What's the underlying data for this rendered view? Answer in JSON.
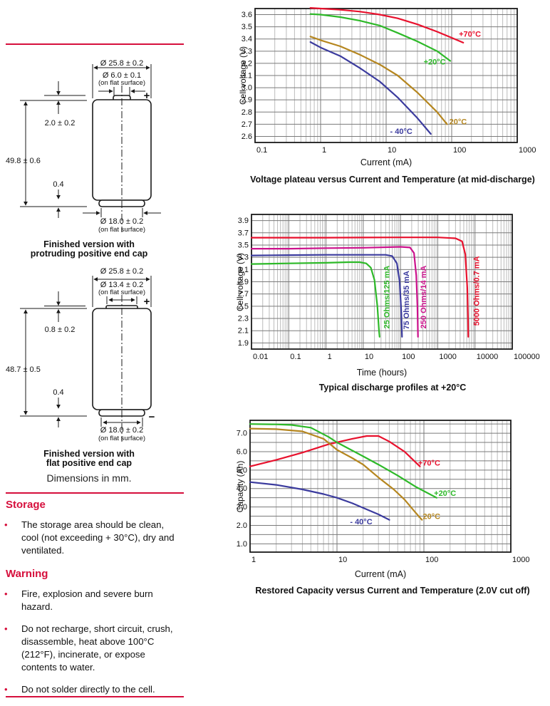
{
  "colors": {
    "accent": "#d60f3c"
  },
  "left": {
    "figures": [
      {
        "caption": [
          "Finished version with",
          "protruding positive end cap"
        ],
        "dims": {
          "outer_dia": "Ø 25.8 ± 0.2",
          "cap_dia": "Ø 6.0 ± 0.1",
          "cap_dia_note": "(on flat surface)",
          "cap_height": "2.0 ± 0.2",
          "total_height": "49.8 ± 0.6",
          "base_step": "0.4",
          "base_dia": "Ø 18.0 ± 0.2",
          "base_dia_note": "(on flat surface)",
          "plus": "+"
        }
      },
      {
        "caption": [
          "Finished version with",
          "flat positive end cap"
        ],
        "dims": {
          "outer_dia": "Ø 25.8 ± 0.2",
          "cap_dia": "Ø 13.4 ± 0.2",
          "cap_dia_note": "(on flat surface)",
          "cap_height": "0.8 ± 0.2",
          "total_height": "48.7 ± 0.5",
          "base_step": "0.4",
          "base_dia": "Ø 18.0 ± 0.2",
          "base_dia_note": "(on flat surface)",
          "plus": "+",
          "minus": "−"
        }
      }
    ],
    "dimensions_note": "Dimensions in mm.",
    "storage": {
      "heading": "Storage",
      "bullets": [
        "The storage area should be clean, cool (not exceeding + 30°C), dry and ventilated."
      ]
    },
    "warning": {
      "heading": "Warning",
      "bullets": [
        "Fire, explosion and severe burn hazard.",
        "Do not recharge, short circuit, crush, disassemble, heat above 100°C (212°F), incinerate, or expose contents to water.",
        "Do not solder directly to the cell."
      ]
    }
  },
  "chart_data": [
    {
      "type": "line",
      "title": "Voltage plateau versus Current and Temperature (at mid-discharge)",
      "xlabel": "Current (mA)",
      "ylabel": "Cell voltage (V)",
      "xscale": "log",
      "grid": true,
      "xlim": [
        0.1,
        1000
      ],
      "ylim": [
        2.55,
        3.65
      ],
      "ygrid": [
        2.6,
        3.6,
        0.1
      ],
      "xticks": [
        "0.1",
        "1",
        "10",
        "100",
        "1000"
      ],
      "yticks": [
        "2.6",
        "2.7",
        "2.8",
        "2.9",
        "3.0",
        "3.1",
        "3.2",
        "3.3",
        "3.4",
        "3.5",
        "3.6"
      ],
      "series": [
        {
          "name": "+70°C",
          "color": "#e8112d",
          "points": [
            [
              0.7,
              3.655
            ],
            [
              1,
              3.65
            ],
            [
              2,
              3.64
            ],
            [
              4,
              3.625
            ],
            [
              8,
              3.6
            ],
            [
              15,
              3.57
            ],
            [
              30,
              3.52
            ],
            [
              60,
              3.46
            ],
            [
              100,
              3.41
            ],
            [
              150,
              3.37
            ]
          ],
          "label": {
            "x": 190,
            "y": 3.42,
            "rotate": 0
          }
        },
        {
          "name": "+20°C",
          "color": "#2db928",
          "points": [
            [
              0.7,
              3.605
            ],
            [
              1,
              3.6
            ],
            [
              2,
              3.58
            ],
            [
              4,
              3.55
            ],
            [
              8,
              3.51
            ],
            [
              15,
              3.45
            ],
            [
              30,
              3.38
            ],
            [
              60,
              3.3
            ],
            [
              95,
              3.22
            ]
          ],
          "label": {
            "x": 55,
            "y": 3.19,
            "rotate": 0
          }
        },
        {
          "name": "- 20°C",
          "color": "#b5861f",
          "points": [
            [
              0.7,
              3.42
            ],
            [
              1,
              3.39
            ],
            [
              2,
              3.34
            ],
            [
              4,
              3.27
            ],
            [
              8,
              3.19
            ],
            [
              15,
              3.1
            ],
            [
              30,
              2.96
            ],
            [
              60,
              2.8
            ],
            [
              85,
              2.7
            ]
          ],
          "label": {
            "x": 115,
            "y": 2.7,
            "rotate": 0
          }
        },
        {
          "name": "- 40°C",
          "color": "#3b3b9e",
          "points": [
            [
              0.7,
              3.375
            ],
            [
              1,
              3.33
            ],
            [
              2,
              3.26
            ],
            [
              4,
              3.16
            ],
            [
              8,
              3.05
            ],
            [
              15,
              2.92
            ],
            [
              30,
              2.75
            ],
            [
              48,
              2.62
            ]
          ],
          "label": {
            "x": 17,
            "y": 2.62,
            "rotate": 0
          }
        }
      ]
    },
    {
      "type": "line",
      "title": "Typical discharge profiles at +20°C",
      "xlabel": "Time (hours)",
      "ylabel": "Cell voltage (V)",
      "xscale": "log",
      "grid": true,
      "xlim": [
        0.01,
        100000
      ],
      "ylim": [
        1.8,
        4.0
      ],
      "ygrid": [
        1.9,
        3.9,
        0.2
      ],
      "xticks": [
        "0.01",
        "0.1",
        "1",
        "10",
        "100",
        "1000",
        "10000",
        "100000"
      ],
      "yticks": [
        "1.9",
        "2.1",
        "2.3",
        "2.5",
        "2.7",
        "2.9",
        "3.1",
        "3.3",
        "3.5",
        "3.7",
        "3.9"
      ],
      "series": [
        {
          "name": "25 Ohms/125 mA",
          "color": "#2db928",
          "points": [
            [
              0.01,
              3.19
            ],
            [
              0.1,
              3.2
            ],
            [
              1,
              3.21
            ],
            [
              4,
              3.22
            ],
            [
              8,
              3.22
            ],
            [
              12,
              3.2
            ],
            [
              16,
              3.13
            ],
            [
              20,
              2.93
            ],
            [
              24,
              2.5
            ],
            [
              26.5,
              2.1
            ],
            [
              27.5,
              2.0
            ]
          ],
          "label": {
            "x": 50,
            "y": 2.65,
            "rotate": -90
          }
        },
        {
          "name": "75 Ohms/35 mA",
          "color": "#3b3b9e",
          "points": [
            [
              0.01,
              3.33
            ],
            [
              0.1,
              3.335
            ],
            [
              1,
              3.34
            ],
            [
              10,
              3.34
            ],
            [
              40,
              3.34
            ],
            [
              60,
              3.32
            ],
            [
              80,
              3.2
            ],
            [
              95,
              2.9
            ],
            [
              105,
              2.4
            ],
            [
              110,
              2.0
            ]
          ],
          "label": {
            "x": 170,
            "y": 2.6,
            "rotate": -90
          }
        },
        {
          "name": "250 Ohms/14 mA",
          "color": "#cc118c",
          "points": [
            [
              0.01,
              3.44
            ],
            [
              0.1,
              3.44
            ],
            [
              1,
              3.45
            ],
            [
              10,
              3.455
            ],
            [
              100,
              3.47
            ],
            [
              180,
              3.46
            ],
            [
              230,
              3.37
            ],
            [
              265,
              3.0
            ],
            [
              285,
              2.5
            ],
            [
              295,
              2.0
            ]
          ],
          "label": {
            "x": 480,
            "y": 2.65,
            "rotate": -90
          }
        },
        {
          "name": "5000 Ohms/0.7 mA",
          "color": "#e8112d",
          "points": [
            [
              0.01,
              3.62
            ],
            [
              1,
              3.62
            ],
            [
              100,
              3.625
            ],
            [
              1000,
              3.625
            ],
            [
              3000,
              3.61
            ],
            [
              4500,
              3.56
            ],
            [
              5500,
              3.35
            ],
            [
              6200,
              2.8
            ],
            [
              6500,
              2.3
            ],
            [
              6600,
              2.0
            ]
          ],
          "label": {
            "x": 13000,
            "y": 2.75,
            "rotate": -90
          }
        }
      ]
    },
    {
      "type": "line",
      "title": "Restored Capacity versus Current and Temperature (2.0V cut off)",
      "xlabel": "Current (mA)",
      "ylabel": "Capacity (Ah)",
      "xscale": "log",
      "grid": true,
      "xlim": [
        1,
        1000
      ],
      "ylim": [
        0.55,
        7.7
      ],
      "ygrid": [
        1.0,
        7.5,
        0.5
      ],
      "xticks": [
        "1",
        "10",
        "100",
        "1000"
      ],
      "yticks": [
        "1.0",
        "2.0",
        "3.0",
        "4.0",
        "5.0",
        "6.0",
        "7.0"
      ],
      "series": [
        {
          "name": "+70°C",
          "color": "#e8112d",
          "points": [
            [
              1,
              5.2
            ],
            [
              2,
              5.55
            ],
            [
              4,
              5.95
            ],
            [
              8,
              6.4
            ],
            [
              15,
              6.7
            ],
            [
              22,
              6.85
            ],
            [
              30,
              6.85
            ],
            [
              40,
              6.55
            ],
            [
              60,
              6.0
            ],
            [
              90,
              5.2
            ]
          ],
          "label": {
            "x": 115,
            "y": 5.25,
            "rotate": 0
          }
        },
        {
          "name": "+20°C",
          "color": "#2db928",
          "points": [
            [
              1,
              7.5
            ],
            [
              2,
              7.48
            ],
            [
              3,
              7.45
            ],
            [
              5,
              7.3
            ],
            [
              8,
              6.8
            ],
            [
              10,
              6.5
            ],
            [
              20,
              5.75
            ],
            [
              30,
              5.3
            ],
            [
              50,
              4.7
            ],
            [
              80,
              4.1
            ],
            [
              140,
              3.5
            ]
          ],
          "label": {
            "x": 175,
            "y": 3.6,
            "rotate": 0
          }
        },
        {
          "name": "- 20°C",
          "color": "#b5861f",
          "points": [
            [
              1,
              7.25
            ],
            [
              2,
              7.22
            ],
            [
              4,
              7.1
            ],
            [
              7,
              6.7
            ],
            [
              10,
              6.1
            ],
            [
              15,
              5.65
            ],
            [
              20,
              5.3
            ],
            [
              30,
              4.6
            ],
            [
              45,
              3.95
            ],
            [
              60,
              3.4
            ],
            [
              80,
              2.7
            ],
            [
              95,
              2.3
            ]
          ],
          "label": {
            "x": 115,
            "y": 2.35,
            "rotate": 0
          }
        },
        {
          "name": "- 40°C",
          "color": "#3b3b9e",
          "points": [
            [
              1,
              4.35
            ],
            [
              2,
              4.2
            ],
            [
              4,
              3.95
            ],
            [
              7,
              3.7
            ],
            [
              10,
              3.5
            ],
            [
              15,
              3.2
            ],
            [
              20,
              2.95
            ],
            [
              30,
              2.6
            ],
            [
              40,
              2.3
            ]
          ],
          "label": {
            "x": 19,
            "y": 2.05,
            "rotate": 0
          }
        }
      ]
    }
  ]
}
